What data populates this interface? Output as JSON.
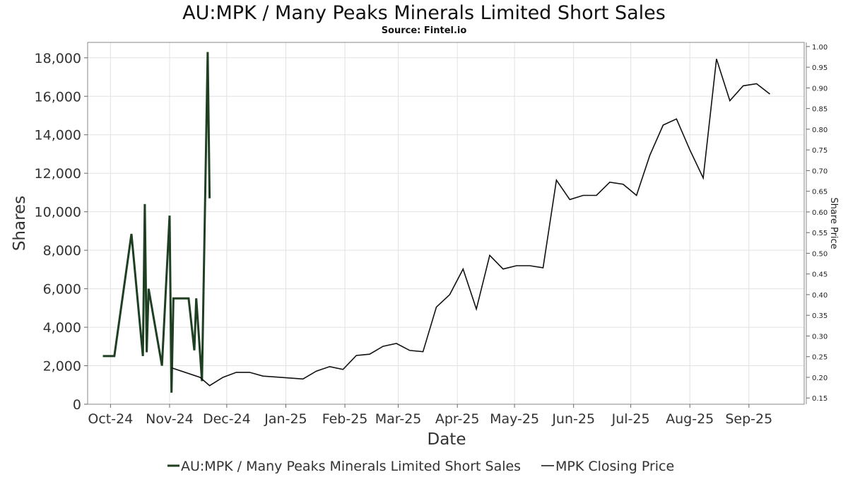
{
  "chart_data": {
    "type": "line",
    "title": "AU:MPK / Many Peaks Minerals Limited Short Sales",
    "subtitle": "Source: Fintel.io",
    "xlabel": "Date",
    "ylabel": "Shares",
    "ylabel_right": "Share Price",
    "ylim": [
      0,
      18800
    ],
    "ylim_right": [
      0.135,
      1.01
    ],
    "xlim": [
      "2024-09-19",
      "2025-09-30"
    ],
    "yticks": [
      0,
      2000,
      4000,
      6000,
      8000,
      10000,
      12000,
      14000,
      16000,
      18000
    ],
    "yticks_labels": [
      "0",
      "2,000",
      "4,000",
      "6,000",
      "8,000",
      "10,000",
      "12,000",
      "14,000",
      "16,000",
      "18,000"
    ],
    "yticks_right": [
      0.15,
      0.2,
      0.25,
      0.3,
      0.35,
      0.4,
      0.45,
      0.5,
      0.55,
      0.6,
      0.65,
      0.7,
      0.75,
      0.8,
      0.85,
      0.9,
      0.95,
      1.0
    ],
    "yticks_right_labels": [
      "0.15",
      "0.20",
      "0.25",
      "0.30",
      "0.35",
      "0.40",
      "0.45",
      "0.50",
      "0.55",
      "0.60",
      "0.65",
      "0.70",
      "0.75",
      "0.80",
      "0.85",
      "0.90",
      "0.95",
      "1.00"
    ],
    "xticks": [
      "2024-10-01",
      "2024-11-01",
      "2024-12-01",
      "2025-01-01",
      "2025-02-01",
      "2025-03-01",
      "2025-04-01",
      "2025-05-01",
      "2025-06-01",
      "2025-07-01",
      "2025-08-01",
      "2025-09-01"
    ],
    "xtick_labels": [
      "Oct-24",
      "Nov-24",
      "Dec-24",
      "Jan-25",
      "Feb-25",
      "Mar-25",
      "Apr-25",
      "May-25",
      "Jun-25",
      "Jul-25",
      "Aug-25",
      "Sep-25"
    ],
    "grid": true,
    "legend": "bottom-center",
    "series": [
      {
        "name": "AU:MPK / Many Peaks Minerals Limited Short Sales",
        "axis": "left",
        "color": "#1e3f22",
        "points": [
          [
            "2024-09-27",
            2500
          ],
          [
            "2024-10-03",
            2500
          ],
          [
            "2024-10-12",
            8850
          ],
          [
            "2024-10-18",
            2500
          ],
          [
            "2024-10-19",
            10400
          ],
          [
            "2024-10-20",
            2700
          ],
          [
            "2024-10-21",
            6000
          ],
          [
            "2024-10-28",
            2000
          ],
          [
            "2024-11-01",
            9800
          ],
          [
            "2024-11-02",
            600
          ],
          [
            "2024-11-03",
            5500
          ],
          [
            "2024-11-11",
            5500
          ],
          [
            "2024-11-14",
            2800
          ],
          [
            "2024-11-15",
            5500
          ],
          [
            "2024-11-18",
            1200
          ],
          [
            "2024-11-21",
            18300
          ],
          [
            "2024-11-22",
            10700
          ]
        ]
      },
      {
        "name": "MPK Closing Price",
        "axis": "right",
        "color": "#111111",
        "points": [
          [
            "2024-11-02",
            0.223
          ],
          [
            "2024-11-17",
            0.2
          ],
          [
            "2024-11-22",
            0.18
          ],
          [
            "2024-11-29",
            0.2
          ],
          [
            "2024-12-06",
            0.212
          ],
          [
            "2024-12-13",
            0.212
          ],
          [
            "2024-12-20",
            0.203
          ],
          [
            "2025-01-10",
            0.196
          ],
          [
            "2025-01-17",
            0.215
          ],
          [
            "2025-01-24",
            0.226
          ],
          [
            "2025-01-31",
            0.219
          ],
          [
            "2025-02-07",
            0.253
          ],
          [
            "2025-02-14",
            0.256
          ],
          [
            "2025-02-21",
            0.275
          ],
          [
            "2025-02-28",
            0.282
          ],
          [
            "2025-03-07",
            0.265
          ],
          [
            "2025-03-14",
            0.262
          ],
          [
            "2025-03-21",
            0.37
          ],
          [
            "2025-03-28",
            0.4
          ],
          [
            "2025-04-04",
            0.462
          ],
          [
            "2025-04-11",
            0.365
          ],
          [
            "2025-04-18",
            0.495
          ],
          [
            "2025-04-25",
            0.462
          ],
          [
            "2025-05-02",
            0.47
          ],
          [
            "2025-05-09",
            0.47
          ],
          [
            "2025-05-16",
            0.465
          ],
          [
            "2025-05-23",
            0.677
          ],
          [
            "2025-05-30",
            0.63
          ],
          [
            "2025-06-06",
            0.64
          ],
          [
            "2025-06-13",
            0.64
          ],
          [
            "2025-06-20",
            0.672
          ],
          [
            "2025-06-27",
            0.667
          ],
          [
            "2025-07-04",
            0.64
          ],
          [
            "2025-07-11",
            0.737
          ],
          [
            "2025-07-18",
            0.81
          ],
          [
            "2025-07-25",
            0.825
          ],
          [
            "2025-08-01",
            0.75
          ],
          [
            "2025-08-08",
            0.682
          ],
          [
            "2025-08-15",
            0.97
          ],
          [
            "2025-08-22",
            0.869
          ],
          [
            "2025-08-29",
            0.905
          ],
          [
            "2025-09-05",
            0.91
          ],
          [
            "2025-09-12",
            0.885
          ]
        ]
      }
    ]
  }
}
